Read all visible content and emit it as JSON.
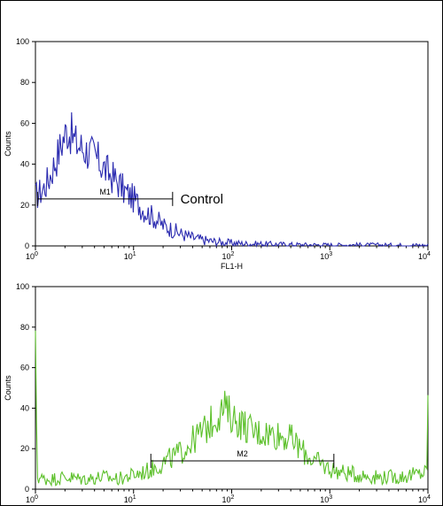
{
  "chart_data": [
    {
      "type": "line",
      "xscale": "log",
      "xlim": [
        1,
        10000
      ],
      "ylim": [
        0,
        100
      ],
      "ylabel": "Counts",
      "xlabel": "FL1-H",
      "yticks": [
        "0",
        "20",
        "40",
        "60",
        "80",
        "100"
      ],
      "xticks": [
        {
          "base": "10",
          "exp": "0"
        },
        {
          "base": "10",
          "exp": "1"
        },
        {
          "base": "10",
          "exp": "2"
        },
        {
          "base": "10",
          "exp": "3"
        },
        {
          "base": "10",
          "exp": "4"
        }
      ],
      "series": [
        {
          "color": "#2b2bb0",
          "x": [
            1.0,
            1.1,
            1.2,
            1.35,
            1.5,
            1.7,
            1.9,
            2.1,
            2.3,
            2.6,
            3.0,
            3.5,
            4.0,
            4.5,
            5.0,
            6.0,
            7.0,
            8.0,
            9.0,
            10.0,
            11.0,
            12.5,
            14.0,
            16.0,
            18.0,
            20.0,
            25.0,
            30.0,
            40.0,
            50.0,
            70.0,
            100.0,
            150.0,
            200.0,
            300.0,
            500.0,
            1000.0,
            2000.0,
            5000.0,
            10000.0
          ],
          "y": [
            24,
            26,
            28,
            32,
            38,
            45,
            52,
            57,
            55,
            50,
            48,
            46,
            44,
            41,
            38,
            34,
            31,
            27,
            25,
            23,
            21,
            18,
            16,
            14,
            12,
            10,
            8,
            6,
            4,
            3,
            2,
            1.5,
            1,
            1,
            0.8,
            0.6,
            0.5,
            0.5,
            0.4,
            0.3
          ]
        }
      ],
      "gate": {
        "label": "M1",
        "x1": 1.05,
        "x2": 25,
        "y": 23
      },
      "annotation": {
        "text": "Control",
        "x": 30,
        "y": 23
      }
    },
    {
      "type": "line",
      "xscale": "log",
      "xlim": [
        1,
        10000
      ],
      "ylim": [
        0,
        100
      ],
      "ylabel": "Counts",
      "yticks": [
        "0",
        "20",
        "40",
        "60",
        "80",
        "100"
      ],
      "xticks": [
        {
          "base": "10",
          "exp": "0"
        },
        {
          "base": "10",
          "exp": "1"
        },
        {
          "base": "10",
          "exp": "2"
        },
        {
          "base": "10",
          "exp": "3"
        },
        {
          "base": "10",
          "exp": "4"
        }
      ],
      "series": [
        {
          "color": "#5cc02a",
          "x": [
            1.0,
            1.05,
            1.2,
            1.5,
            2.0,
            3.0,
            5.0,
            7.0,
            10.0,
            14.0,
            20.0,
            30.0,
            40.0,
            55.0,
            70.0,
            85.0,
            100.0,
            130.0,
            170.0,
            220.0,
            300.0,
            400.0,
            550.0,
            700.0,
            1000.0,
            1400.0,
            2000.0,
            3000.0,
            5000.0,
            7000.0,
            9000.0,
            9800.0,
            10000.0
          ],
          "y": [
            68,
            6,
            5,
            5,
            6,
            5,
            6,
            5,
            7,
            9,
            13,
            18,
            24,
            30,
            36,
            40,
            36,
            32,
            28,
            28,
            27,
            25,
            18,
            14,
            10,
            8,
            7,
            6,
            6,
            7,
            8,
            9,
            53
          ]
        }
      ],
      "gate": {
        "label": "M2",
        "x1": 15,
        "x2": 1100,
        "y": 14
      }
    }
  ]
}
